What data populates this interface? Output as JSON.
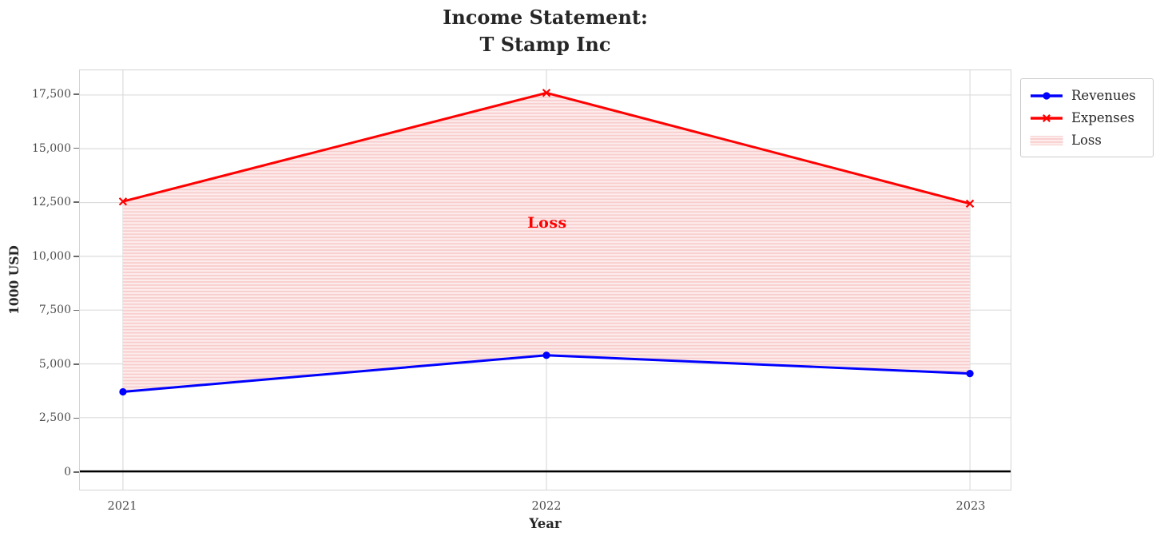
{
  "title": "Income Statement:\nT Stamp Inc",
  "axes": {
    "xlabel": "Year",
    "ylabel": "1000 USD"
  },
  "annotation": {
    "text": "Loss",
    "color": "#ff0000"
  },
  "legend": {
    "position": "upper-right-outside",
    "items": [
      {
        "label": "Revenues",
        "marker": "line-circle",
        "color": "#0000ff"
      },
      {
        "label": "Expenses",
        "marker": "line-x",
        "color": "#ff0000"
      },
      {
        "label": "Loss",
        "marker": "hatch-patch",
        "color": "#f8cbcb"
      }
    ]
  },
  "chart_data": {
    "type": "line",
    "title": "Income Statement:\nT Stamp Inc",
    "xlabel": "Year",
    "ylabel": "1000 USD",
    "categories": [
      "2021",
      "2022",
      "2023"
    ],
    "series": [
      {
        "name": "Revenues",
        "color": "#0000ff",
        "marker": "circle",
        "line_width": 3,
        "values": [
          3700,
          5400,
          4550
        ]
      },
      {
        "name": "Expenses",
        "color": "#ff0000",
        "marker": "x",
        "line_width": 3,
        "values": [
          12550,
          17600,
          12450
        ]
      }
    ],
    "fill_between": {
      "label": "Loss",
      "between": [
        "Revenues",
        "Expenses"
      ],
      "facecolor": "#fdecec",
      "hatch": "-",
      "hatch_color": "#f8cbcb",
      "annotation": {
        "text": "Loss",
        "x": "2022",
        "y": 11550
      }
    },
    "baseline": {
      "y": 0,
      "color": "#000000",
      "line_width": 2.5
    },
    "yticks": [
      0,
      2500,
      5000,
      7500,
      10000,
      12500,
      15000,
      17500
    ],
    "ytick_labels": [
      "0",
      "2,500",
      "5,000",
      "7,500",
      "10,000",
      "12,500",
      "15,000",
      "17,500"
    ],
    "ylim": [
      -850,
      18650
    ],
    "grid": true,
    "grid_color": "#dcdcdc",
    "legend_entries": [
      "Revenues",
      "Expenses",
      "Loss"
    ]
  }
}
